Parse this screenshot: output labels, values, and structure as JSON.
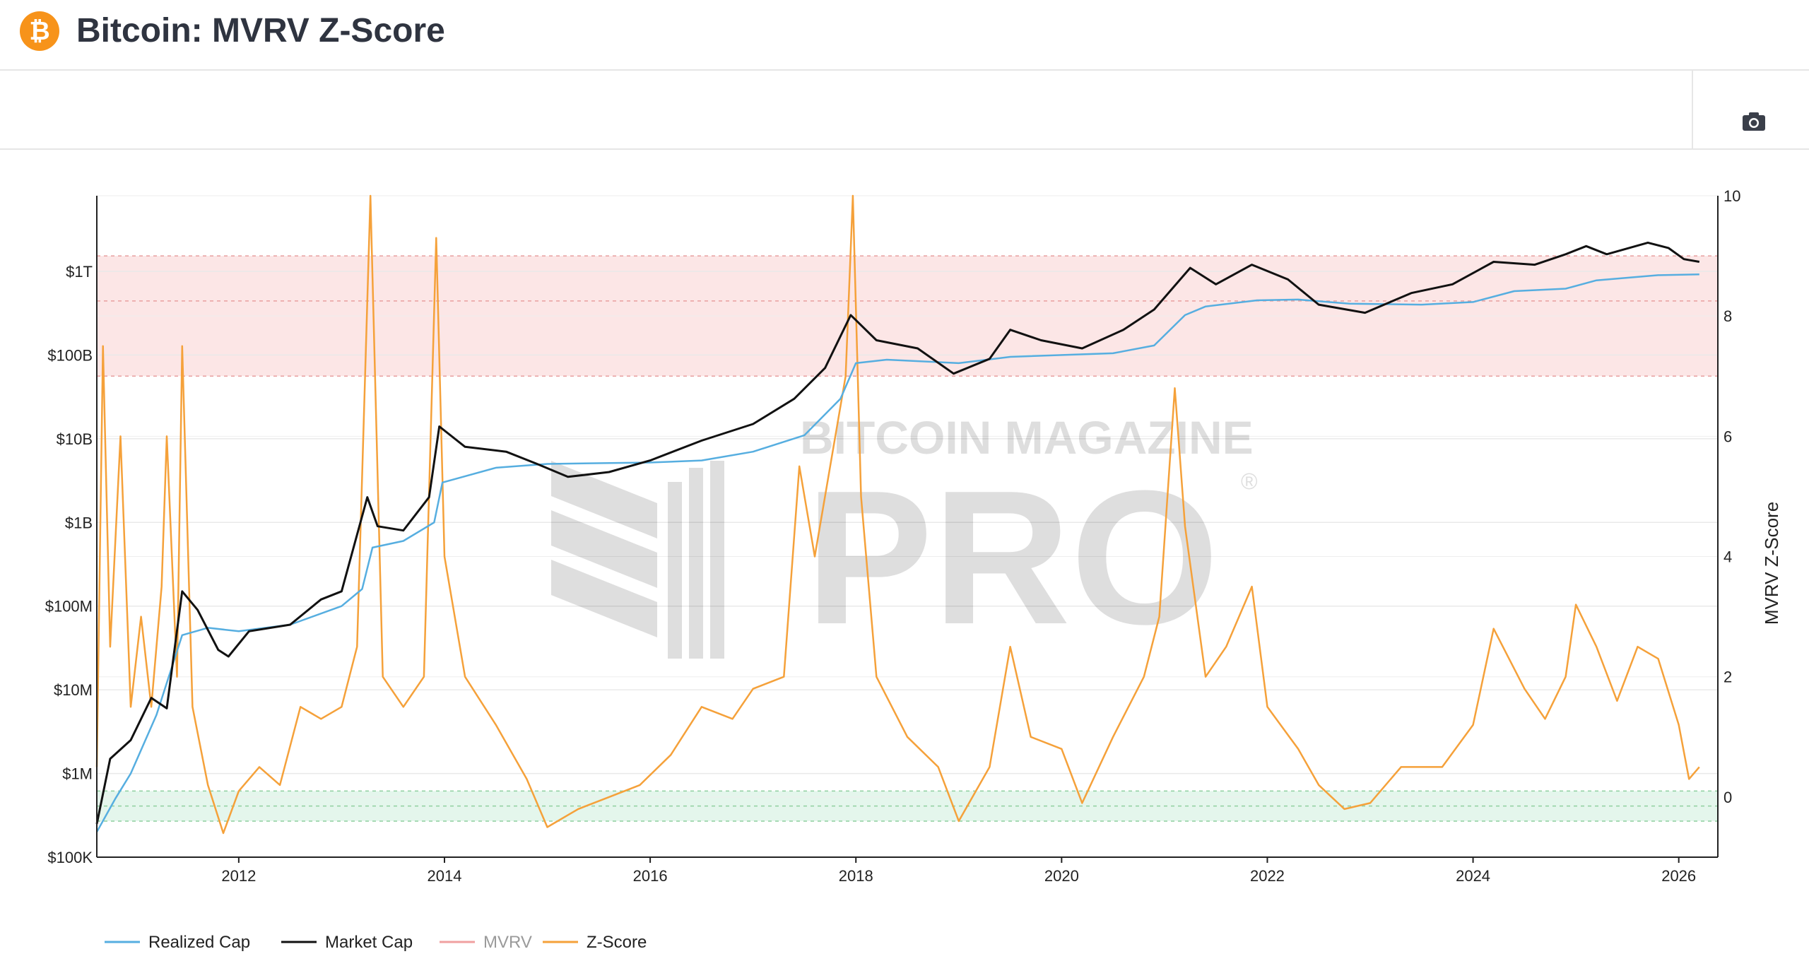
{
  "page": {
    "title": "Bitcoin: MVRV Z-Score",
    "brand_icon": "bitcoin-icon",
    "toolbar": {
      "camera_icon": "camera-icon"
    }
  },
  "watermark": {
    "line1": "BITCOIN MAGAZINE",
    "line2": "PRO",
    "mark": "®"
  },
  "colors": {
    "realized_cap": "#56aee0",
    "market_cap": "#111111",
    "mvrv": "#f0a0a0",
    "zscore": "#f5a13a",
    "red_zone": "#fce6e6",
    "green_zone": "#e4f6ec"
  },
  "chart_data": {
    "type": "line",
    "x_ticks": [
      "2012",
      "2014",
      "2016",
      "2018",
      "2020",
      "2022",
      "2024",
      "2026"
    ],
    "x_range": [
      2010.62,
      2026.38
    ],
    "y_left": {
      "scale": "log",
      "range": [
        100000,
        8000000000000
      ],
      "ticks": [
        {
          "v": 100000,
          "label": "$100K"
        },
        {
          "v": 1000000,
          "label": "$1M"
        },
        {
          "v": 10000000,
          "label": "$10M"
        },
        {
          "v": 100000000,
          "label": "$100M"
        },
        {
          "v": 1000000000,
          "label": "$1B"
        },
        {
          "v": 10000000000,
          "label": "$10B"
        },
        {
          "v": 100000000000,
          "label": "$100B"
        },
        {
          "v": 1000000000000,
          "label": "$1T"
        }
      ]
    },
    "y_right": {
      "label": "MVRV Z-Score",
      "range": [
        -1,
        10
      ],
      "ticks": [
        0,
        2,
        4,
        6,
        8,
        10
      ]
    },
    "zones": {
      "red": {
        "range": [
          7,
          9
        ]
      },
      "green": {
        "range": [
          -0.4,
          0.1
        ]
      }
    },
    "grid": true,
    "legend": {
      "position": "bottom-left"
    },
    "series": [
      {
        "name": "Realized Cap",
        "axis": "left",
        "points": [
          [
            2010.62,
            200000
          ],
          [
            2010.8,
            500000
          ],
          [
            2010.95,
            1000000
          ],
          [
            2011.2,
            5000000
          ],
          [
            2011.45,
            45000000
          ],
          [
            2011.7,
            55000000
          ],
          [
            2012.0,
            50000000
          ],
          [
            2012.5,
            60000000
          ],
          [
            2013.0,
            100000000
          ],
          [
            2013.2,
            160000000
          ],
          [
            2013.3,
            500000000
          ],
          [
            2013.6,
            600000000
          ],
          [
            2013.9,
            1000000000
          ],
          [
            2013.98,
            3000000000
          ],
          [
            2014.5,
            4500000000
          ],
          [
            2015.0,
            5000000000
          ],
          [
            2016.0,
            5200000000
          ],
          [
            2016.5,
            5500000000
          ],
          [
            2017.0,
            7000000000
          ],
          [
            2017.5,
            11000000000
          ],
          [
            2017.85,
            30000000000
          ],
          [
            2018.0,
            80000000000
          ],
          [
            2018.3,
            88000000000
          ],
          [
            2019.0,
            80000000000
          ],
          [
            2019.5,
            95000000000
          ],
          [
            2020.5,
            105000000000
          ],
          [
            2020.9,
            130000000000
          ],
          [
            2021.2,
            300000000000
          ],
          [
            2021.4,
            380000000000
          ],
          [
            2021.9,
            450000000000
          ],
          [
            2022.3,
            460000000000
          ],
          [
            2022.8,
            410000000000
          ],
          [
            2023.5,
            400000000000
          ],
          [
            2024.0,
            430000000000
          ],
          [
            2024.4,
            580000000000
          ],
          [
            2024.9,
            620000000000
          ],
          [
            2025.2,
            780000000000
          ],
          [
            2025.8,
            900000000000
          ],
          [
            2026.2,
            920000000000
          ]
        ]
      },
      {
        "name": "Market Cap",
        "axis": "left",
        "points": [
          [
            2010.62,
            250000
          ],
          [
            2010.75,
            1500000
          ],
          [
            2010.95,
            2500000
          ],
          [
            2011.15,
            8000000
          ],
          [
            2011.3,
            6000000
          ],
          [
            2011.45,
            150000000
          ],
          [
            2011.6,
            90000000
          ],
          [
            2011.8,
            30000000
          ],
          [
            2011.9,
            25000000
          ],
          [
            2012.1,
            50000000
          ],
          [
            2012.5,
            60000000
          ],
          [
            2012.8,
            120000000
          ],
          [
            2013.0,
            150000000
          ],
          [
            2013.25,
            2000000000
          ],
          [
            2013.35,
            900000000
          ],
          [
            2013.6,
            800000000
          ],
          [
            2013.85,
            2000000000
          ],
          [
            2013.95,
            14000000000
          ],
          [
            2014.2,
            8000000000
          ],
          [
            2014.6,
            7000000000
          ],
          [
            2014.9,
            5000000000
          ],
          [
            2015.2,
            3500000000
          ],
          [
            2015.6,
            4000000000
          ],
          [
            2016.0,
            5500000000
          ],
          [
            2016.5,
            9500000000
          ],
          [
            2017.0,
            15000000000
          ],
          [
            2017.4,
            30000000000
          ],
          [
            2017.7,
            70000000000
          ],
          [
            2017.95,
            300000000000
          ],
          [
            2018.2,
            150000000000
          ],
          [
            2018.6,
            120000000000
          ],
          [
            2018.95,
            60000000000
          ],
          [
            2019.3,
            90000000000
          ],
          [
            2019.5,
            200000000000
          ],
          [
            2019.8,
            150000000000
          ],
          [
            2020.2,
            120000000000
          ],
          [
            2020.6,
            200000000000
          ],
          [
            2020.9,
            350000000000
          ],
          [
            2021.25,
            1100000000000
          ],
          [
            2021.5,
            700000000000
          ],
          [
            2021.85,
            1200000000000
          ],
          [
            2022.2,
            800000000000
          ],
          [
            2022.5,
            400000000000
          ],
          [
            2022.95,
            320000000000
          ],
          [
            2023.4,
            550000000000
          ],
          [
            2023.8,
            700000000000
          ],
          [
            2024.2,
            1300000000000
          ],
          [
            2024.6,
            1200000000000
          ],
          [
            2024.9,
            1600000000000
          ],
          [
            2025.1,
            2000000000000
          ],
          [
            2025.3,
            1600000000000
          ],
          [
            2025.7,
            2200000000000
          ],
          [
            2025.9,
            1900000000000
          ],
          [
            2026.05,
            1400000000000
          ],
          [
            2026.2,
            1300000000000
          ]
        ]
      },
      {
        "name": "MVRV",
        "axis": "right",
        "hidden": true,
        "points": []
      },
      {
        "name": "Z-Score",
        "axis": "right",
        "points": [
          [
            2010.62,
            0.5
          ],
          [
            2010.68,
            7.5
          ],
          [
            2010.75,
            2.5
          ],
          [
            2010.85,
            6.0
          ],
          [
            2010.95,
            1.5
          ],
          [
            2011.05,
            3.0
          ],
          [
            2011.15,
            1.5
          ],
          [
            2011.25,
            3.5
          ],
          [
            2011.3,
            6.0
          ],
          [
            2011.4,
            2.0
          ],
          [
            2011.45,
            7.5
          ],
          [
            2011.55,
            1.5
          ],
          [
            2011.7,
            0.2
          ],
          [
            2011.85,
            -0.6
          ],
          [
            2012.0,
            0.1
          ],
          [
            2012.2,
            0.5
          ],
          [
            2012.4,
            0.2
          ],
          [
            2012.6,
            1.5
          ],
          [
            2012.8,
            1.3
          ],
          [
            2013.0,
            1.5
          ],
          [
            2013.15,
            2.5
          ],
          [
            2013.28,
            10.0
          ],
          [
            2013.4,
            2.0
          ],
          [
            2013.6,
            1.5
          ],
          [
            2013.8,
            2.0
          ],
          [
            2013.92,
            9.3
          ],
          [
            2014.0,
            4.0
          ],
          [
            2014.2,
            2.0
          ],
          [
            2014.5,
            1.2
          ],
          [
            2014.8,
            0.3
          ],
          [
            2015.0,
            -0.5
          ],
          [
            2015.3,
            -0.2
          ],
          [
            2015.6,
            0.0
          ],
          [
            2015.9,
            0.2
          ],
          [
            2016.2,
            0.7
          ],
          [
            2016.5,
            1.5
          ],
          [
            2016.8,
            1.3
          ],
          [
            2017.0,
            1.8
          ],
          [
            2017.3,
            2.0
          ],
          [
            2017.45,
            5.5
          ],
          [
            2017.6,
            4.0
          ],
          [
            2017.75,
            5.5
          ],
          [
            2017.9,
            7.0
          ],
          [
            2017.97,
            10.0
          ],
          [
            2018.05,
            5.0
          ],
          [
            2018.2,
            2.0
          ],
          [
            2018.5,
            1.0
          ],
          [
            2018.8,
            0.5
          ],
          [
            2019.0,
            -0.4
          ],
          [
            2019.3,
            0.5
          ],
          [
            2019.5,
            2.5
          ],
          [
            2019.7,
            1.0
          ],
          [
            2020.0,
            0.8
          ],
          [
            2020.2,
            -0.1
          ],
          [
            2020.5,
            1.0
          ],
          [
            2020.8,
            2.0
          ],
          [
            2020.95,
            3.0
          ],
          [
            2021.1,
            6.8
          ],
          [
            2021.2,
            4.5
          ],
          [
            2021.4,
            2.0
          ],
          [
            2021.6,
            2.5
          ],
          [
            2021.85,
            3.5
          ],
          [
            2022.0,
            1.5
          ],
          [
            2022.3,
            0.8
          ],
          [
            2022.5,
            0.2
          ],
          [
            2022.75,
            -0.2
          ],
          [
            2023.0,
            -0.1
          ],
          [
            2023.3,
            0.5
          ],
          [
            2023.7,
            0.5
          ],
          [
            2024.0,
            1.2
          ],
          [
            2024.2,
            2.8
          ],
          [
            2024.5,
            1.8
          ],
          [
            2024.7,
            1.3
          ],
          [
            2024.9,
            2.0
          ],
          [
            2025.0,
            3.2
          ],
          [
            2025.2,
            2.5
          ],
          [
            2025.4,
            1.6
          ],
          [
            2025.6,
            2.5
          ],
          [
            2025.8,
            2.3
          ],
          [
            2026.0,
            1.2
          ],
          [
            2026.1,
            0.3
          ],
          [
            2026.2,
            0.5
          ]
        ]
      }
    ]
  }
}
